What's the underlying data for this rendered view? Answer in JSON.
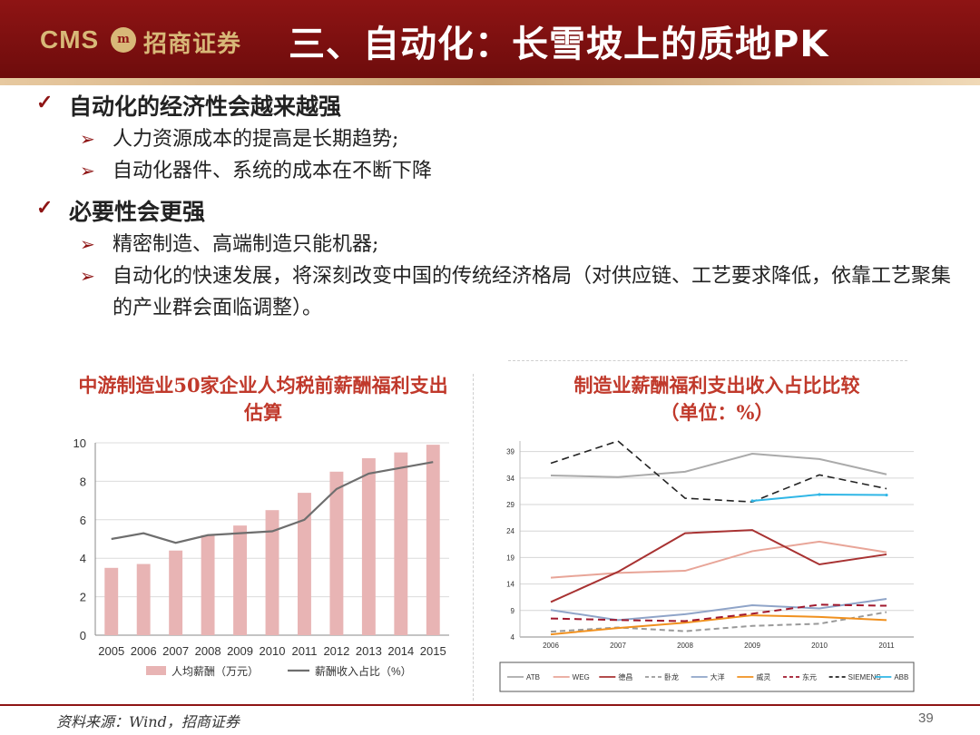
{
  "header": {
    "logo_latin": "CMS",
    "logo_cn": "招商证券",
    "title": "三、自动化：长雪坡上的质地PK"
  },
  "bullets": [
    {
      "text": "自动化的经济性会越来越强",
      "sub": [
        "人力资源成本的提高是长期趋势;",
        "自动化器件、系统的成本在不断下降"
      ]
    },
    {
      "text": "必要性会更强",
      "sub": [
        "精密制造、高端制造只能机器;",
        "自动化的快速发展，将深刻改变中国的传统经济格局（对供应链、工艺要求降低，依靠工艺聚集的产业群会面临调整）。"
      ]
    }
  ],
  "icons": {
    "check": "check-icon",
    "arrow": "arrow-right-icon"
  },
  "colors": {
    "brand": "#8e1414",
    "gold": "#d8b878",
    "chart_title": "#c0392b"
  },
  "chart_data": [
    {
      "type": "bar",
      "title": "中游制造业50家企业人均税前薪酬福利支出估算",
      "categories": [
        "2005",
        "2006",
        "2007",
        "2008",
        "2009",
        "2010",
        "2011",
        "2012",
        "2013",
        "2014",
        "2015"
      ],
      "series": [
        {
          "name": "人均薪酬（万元）",
          "type": "bar",
          "color": "#e8b4b4",
          "values": [
            3.5,
            3.7,
            4.4,
            5.2,
            5.7,
            6.5,
            7.4,
            8.5,
            9.2,
            9.5,
            9.9
          ]
        },
        {
          "name": "薪酬收入占比（%）",
          "type": "line",
          "color": "#6e6e6e",
          "values": [
            5.0,
            5.3,
            4.8,
            5.2,
            5.3,
            5.4,
            6.0,
            7.6,
            8.4,
            8.7,
            9.0
          ]
        }
      ],
      "yticks": [
        0,
        2,
        4,
        6,
        8,
        10
      ],
      "ylim": [
        0,
        10
      ],
      "grid": true,
      "legend": "bottom"
    },
    {
      "type": "line",
      "title": "制造业薪酬福利支出收入占比比较",
      "subtitle": "（单位：%）",
      "x": [
        "2006",
        "2007",
        "2008",
        "2009",
        "2010",
        "2011"
      ],
      "yticks": [
        4,
        9,
        14,
        19,
        24,
        29,
        34,
        39
      ],
      "ylim": [
        4,
        41
      ],
      "grid": true,
      "legend": "bottom",
      "series": [
        {
          "name": "ATB",
          "color": "#aaaaaa",
          "dash": "",
          "values": [
            34.5,
            34.2,
            35.2,
            38.6,
            37.6,
            34.7
          ]
        },
        {
          "name": "WEG",
          "color": "#e8a598",
          "dash": "",
          "values": [
            15.2,
            16.1,
            16.5,
            20.2,
            22.0,
            20.0
          ]
        },
        {
          "name": "德昌",
          "color": "#a83232",
          "dash": "",
          "values": [
            10.6,
            16.3,
            23.6,
            24.2,
            17.7,
            19.6
          ]
        },
        {
          "name": "卧龙",
          "color": "#999999",
          "dash": "6,4",
          "values": [
            5.0,
            5.8,
            5.1,
            6.1,
            6.5,
            8.7
          ]
        },
        {
          "name": "大洋",
          "color": "#8fa4c8",
          "dash": "",
          "values": [
            9.1,
            7.2,
            8.3,
            10.0,
            9.4,
            11.2
          ]
        },
        {
          "name": "威灵",
          "color": "#f0901e",
          "dash": "",
          "values": [
            4.5,
            5.7,
            6.7,
            8.1,
            7.8,
            7.2
          ]
        },
        {
          "name": "东元",
          "color": "#a0182d",
          "dash": "8,5",
          "values": [
            7.5,
            7.2,
            7.0,
            8.4,
            10.1,
            9.9
          ]
        },
        {
          "name": "SIEMENS",
          "color": "#222222",
          "dash": "8,5",
          "values": [
            36.8,
            41.0,
            30.2,
            29.5,
            34.6,
            32.0
          ]
        },
        {
          "name": "ABB",
          "color": "#2fb6e6",
          "dash": "",
          "values": [
            null,
            null,
            null,
            29.7,
            30.9,
            30.8
          ]
        }
      ]
    }
  ],
  "footer": {
    "source": "资料来源：Wind，招商证券",
    "page": "39"
  }
}
